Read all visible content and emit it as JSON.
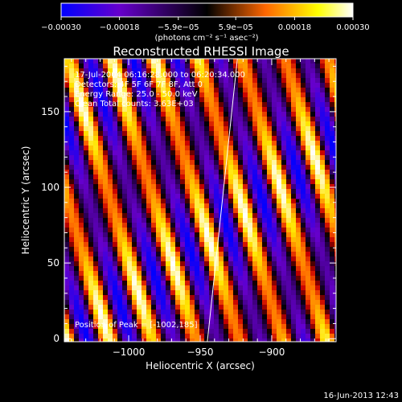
{
  "chart_data": {
    "type": "heatmap",
    "title": "Reconstructed RHESSI Image",
    "xlabel": "Heliocentric X (arcsec)",
    "ylabel": "Heliocentric Y (arcsec)",
    "xlim": [
      -1045,
      -855
    ],
    "ylim": [
      -2,
      185
    ],
    "x_ticks": [
      -1000,
      -950,
      -900
    ],
    "x_tick_labels": [
      "−1000",
      "−950",
      "−900"
    ],
    "y_ticks": [
      0,
      50,
      100,
      150
    ],
    "y_tick_labels": [
      "0",
      "50",
      "100",
      "150"
    ],
    "colorbar": {
      "range": [
        -0.0003,
        0.0003
      ],
      "tick_labels": [
        "−0.00030",
        "−0.00018",
        "−5.9e−05",
        "5.9e−05",
        "0.00018",
        "0.00030"
      ],
      "unit_label": "(photons cm⁻² s⁻¹ asec⁻²)",
      "colors": [
        "#0000ff",
        "#6600cc",
        "#000000",
        "#ff6600",
        "#ffff00",
        "#ffffff"
      ]
    },
    "info_lines": [
      "17-Jul-2004 06:16:28.000 to 06:20:34.000",
      "Detectors: 4F 5F 6F 7F 8F, Att 0",
      "Energy Range: 25.0 - 50.0 keV",
      "Clean    Total counts: 3.63E+03"
    ],
    "peak_text": "Position of Peak = [-1002,185]",
    "limb_line": [
      [
        -945,
        -2
      ],
      [
        -924,
        185
      ]
    ],
    "peak_marker": [
      -882,
      91
    ],
    "grid": false
  },
  "footer": {
    "date": "16-Jun-2013 12:43"
  }
}
